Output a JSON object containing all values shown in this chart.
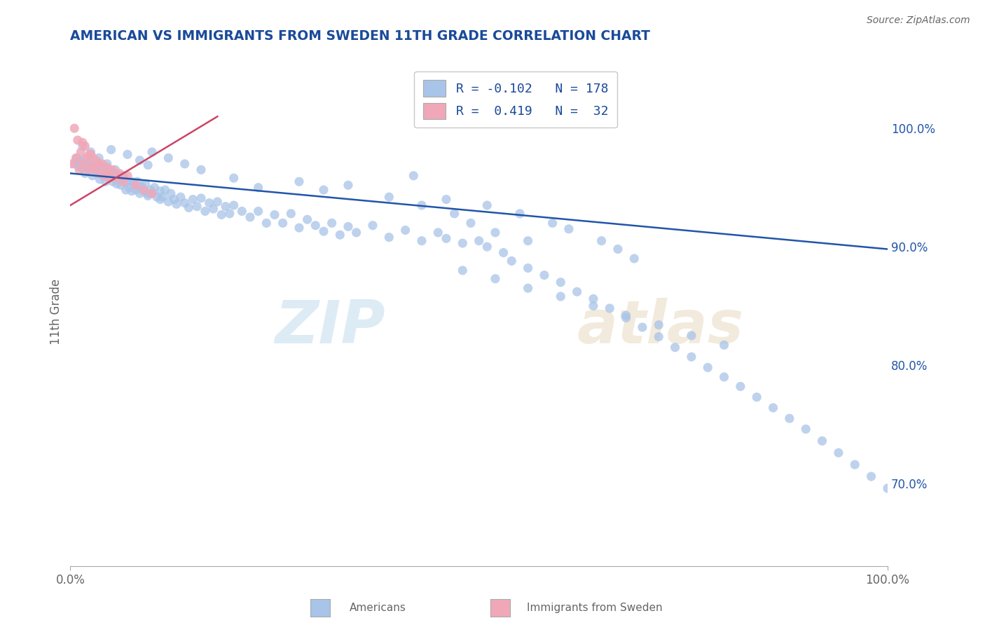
{
  "title": "AMERICAN VS IMMIGRANTS FROM SWEDEN 11TH GRADE CORRELATION CHART",
  "source_text": "Source: ZipAtlas.com",
  "ylabel": "11th Grade",
  "xlim": [
    0.0,
    1.0
  ],
  "ylim": [
    0.63,
    1.06
  ],
  "y_tick_values_right": [
    0.7,
    0.8,
    0.9,
    1.0
  ],
  "legend_blue_r": "-0.102",
  "legend_blue_n": "178",
  "legend_pink_r": "0.419",
  "legend_pink_n": "32",
  "blue_color": "#a8c4e8",
  "pink_color": "#f0a8b8",
  "blue_line_color": "#2255aa",
  "pink_line_color": "#cc4466",
  "title_color": "#1a4a9a",
  "legend_text_color": "#1a4a9a",
  "axis_label_color": "#666666",
  "watermark_zip": "ZIP",
  "watermark_atlas": "atlas",
  "background_color": "#ffffff",
  "grid_color": "#cccccc",
  "blue_trend_x": [
    0.0,
    1.0
  ],
  "blue_trend_y": [
    0.962,
    0.898
  ],
  "pink_trend_x": [
    0.0,
    0.18
  ],
  "pink_trend_y": [
    0.935,
    1.01
  ],
  "blue_scatter_x": [
    0.005,
    0.008,
    0.01,
    0.012,
    0.015,
    0.017,
    0.018,
    0.02,
    0.022,
    0.023,
    0.025,
    0.027,
    0.028,
    0.03,
    0.032,
    0.033,
    0.035,
    0.036,
    0.038,
    0.04,
    0.042,
    0.043,
    0.045,
    0.047,
    0.048,
    0.05,
    0.052,
    0.054,
    0.055,
    0.057,
    0.058,
    0.06,
    0.062,
    0.065,
    0.068,
    0.07,
    0.072,
    0.075,
    0.078,
    0.08,
    0.082,
    0.085,
    0.087,
    0.09,
    0.092,
    0.095,
    0.098,
    0.1,
    0.103,
    0.106,
    0.11,
    0.113,
    0.116,
    0.12,
    0.123,
    0.127,
    0.13,
    0.135,
    0.14,
    0.145,
    0.15,
    0.155,
    0.16,
    0.165,
    0.17,
    0.175,
    0.18,
    0.185,
    0.19,
    0.195,
    0.2,
    0.21,
    0.22,
    0.23,
    0.24,
    0.25,
    0.26,
    0.27,
    0.28,
    0.29,
    0.3,
    0.31,
    0.32,
    0.33,
    0.34,
    0.35,
    0.37,
    0.39,
    0.41,
    0.43,
    0.45,
    0.46,
    0.48,
    0.5,
    0.51,
    0.53,
    0.54,
    0.56,
    0.58,
    0.6,
    0.62,
    0.64,
    0.66,
    0.68,
    0.7,
    0.72,
    0.74,
    0.76,
    0.78,
    0.8,
    0.34,
    0.42,
    0.46,
    0.51,
    0.55,
    0.59,
    0.61,
    0.65,
    0.67,
    0.69,
    0.28,
    0.31,
    0.39,
    0.43,
    0.47,
    0.49,
    0.52,
    0.56,
    0.1,
    0.12,
    0.14,
    0.16,
    0.2,
    0.23,
    0.05,
    0.07,
    0.085,
    0.095,
    0.82,
    0.84,
    0.86,
    0.88,
    0.9,
    0.92,
    0.94,
    0.96,
    0.98,
    1.0,
    0.48,
    0.52,
    0.56,
    0.6,
    0.64,
    0.68,
    0.72,
    0.76,
    0.8,
    0.015,
    0.025,
    0.035,
    0.045,
    0.055,
    0.065,
    0.075,
    0.085,
    0.095,
    0.11
  ],
  "blue_scatter_y": [
    0.97,
    0.975,
    0.968,
    0.972,
    0.966,
    0.974,
    0.962,
    0.97,
    0.968,
    0.965,
    0.972,
    0.96,
    0.967,
    0.965,
    0.97,
    0.962,
    0.968,
    0.957,
    0.963,
    0.96,
    0.967,
    0.955,
    0.962,
    0.958,
    0.965,
    0.96,
    0.955,
    0.962,
    0.958,
    0.953,
    0.96,
    0.957,
    0.952,
    0.958,
    0.948,
    0.955,
    0.95,
    0.947,
    0.953,
    0.948,
    0.955,
    0.945,
    0.951,
    0.947,
    0.953,
    0.943,
    0.948,
    0.945,
    0.95,
    0.942,
    0.947,
    0.942,
    0.948,
    0.938,
    0.945,
    0.94,
    0.936,
    0.942,
    0.937,
    0.933,
    0.94,
    0.934,
    0.941,
    0.93,
    0.937,
    0.932,
    0.938,
    0.927,
    0.934,
    0.928,
    0.935,
    0.93,
    0.925,
    0.93,
    0.92,
    0.927,
    0.92,
    0.928,
    0.916,
    0.923,
    0.918,
    0.913,
    0.92,
    0.91,
    0.917,
    0.912,
    0.918,
    0.908,
    0.914,
    0.905,
    0.912,
    0.907,
    0.903,
    0.905,
    0.9,
    0.895,
    0.888,
    0.882,
    0.876,
    0.87,
    0.862,
    0.856,
    0.848,
    0.84,
    0.832,
    0.824,
    0.815,
    0.807,
    0.798,
    0.79,
    0.952,
    0.96,
    0.94,
    0.935,
    0.928,
    0.92,
    0.915,
    0.905,
    0.898,
    0.89,
    0.955,
    0.948,
    0.942,
    0.935,
    0.928,
    0.92,
    0.912,
    0.905,
    0.98,
    0.975,
    0.97,
    0.965,
    0.958,
    0.95,
    0.982,
    0.978,
    0.973,
    0.969,
    0.782,
    0.773,
    0.764,
    0.755,
    0.746,
    0.736,
    0.726,
    0.716,
    0.706,
    0.696,
    0.88,
    0.873,
    0.865,
    0.858,
    0.85,
    0.842,
    0.834,
    0.825,
    0.817,
    0.985,
    0.98,
    0.975,
    0.97,
    0.965,
    0.96,
    0.955,
    0.95,
    0.945,
    0.94
  ],
  "pink_scatter_x": [
    0.002,
    0.005,
    0.007,
    0.009,
    0.011,
    0.013,
    0.015,
    0.018,
    0.02,
    0.022,
    0.024,
    0.026,
    0.028,
    0.03,
    0.033,
    0.036,
    0.039,
    0.042,
    0.045,
    0.048,
    0.052,
    0.056,
    0.06,
    0.065,
    0.07,
    0.08,
    0.09,
    0.1,
    0.015,
    0.025,
    0.035,
    0.045
  ],
  "pink_scatter_y": [
    0.97,
    1.0,
    0.975,
    0.99,
    0.965,
    0.98,
    0.97,
    0.985,
    0.975,
    0.965,
    0.978,
    0.968,
    0.975,
    0.965,
    0.972,
    0.962,
    0.97,
    0.96,
    0.967,
    0.958,
    0.965,
    0.958,
    0.962,
    0.955,
    0.96,
    0.952,
    0.948,
    0.945,
    0.988,
    0.978,
    0.97,
    0.963
  ]
}
